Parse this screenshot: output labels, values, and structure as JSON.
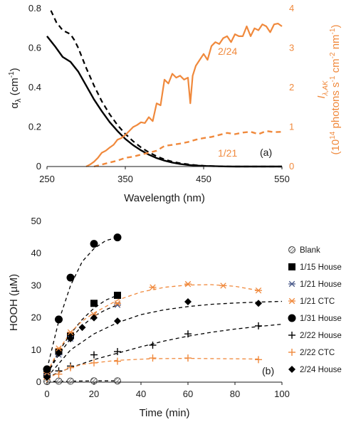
{
  "colors": {
    "black": "#000000",
    "orange": "#f0893c",
    "axis": "#1a1a1a",
    "grid": "#000000"
  },
  "chart_data": [
    {
      "panel_label": "(a)",
      "type": "line",
      "xlabel": "Wavelength (nm)",
      "ylabel": "αλ (cm-1)",
      "ylabel_main": "α",
      "ylabel_sub": "λ",
      "ylabel_units": " (cm",
      "ylabel_units_sup": "-1",
      "ylabel_units_end": ")",
      "ylabel_right_main": "I",
      "ylabel_right_sub": "λ,AK",
      "ylabel_right_units": "(10",
      "ylabel_right_sup1": "14",
      "ylabel_right_mid1": " photons s",
      "ylabel_right_sup2": "-1",
      "ylabel_right_mid2": " cm",
      "ylabel_right_sup3": "-2",
      "ylabel_right_mid3": " nm",
      "ylabel_right_sup4": "-1",
      "ylabel_right_end": ")",
      "xlim": [
        250,
        550
      ],
      "ylim": [
        0,
        0.8
      ],
      "ylim_right": [
        0,
        4
      ],
      "xticks": [
        "250",
        "350",
        "450",
        "550"
      ],
      "yticks": [
        "0",
        "0.2",
        "0.4",
        "0.6",
        "0.8"
      ],
      "yticks_right": [
        "0",
        "1",
        "2",
        "3",
        "4"
      ],
      "annotations": [
        "2/24",
        "1/21"
      ],
      "series": [
        {
          "style": "solid-black",
          "axis": "left",
          "x": [
            250,
            260,
            270,
            280,
            290,
            300,
            310,
            320,
            330,
            340,
            350,
            360,
            370,
            380,
            390,
            400,
            410,
            420,
            430,
            440,
            450,
            460,
            470,
            480,
            490,
            500,
            550
          ],
          "y": [
            0.66,
            0.61,
            0.555,
            0.53,
            0.48,
            0.41,
            0.34,
            0.28,
            0.225,
            0.18,
            0.14,
            0.108,
            0.082,
            0.06,
            0.043,
            0.03,
            0.02,
            0.013,
            0.008,
            0.005,
            0.003,
            0.002,
            0.001,
            0.0005,
            0.0,
            0.0,
            0.0
          ]
        },
        {
          "style": "dashed-black",
          "axis": "left",
          "x": [
            255,
            262,
            270,
            280,
            285,
            290,
            300,
            310,
            320,
            330,
            340,
            350,
            360,
            370,
            380,
            390,
            400,
            410,
            420,
            430,
            440,
            450,
            460,
            470,
            480,
            490,
            500,
            550
          ],
          "y": [
            0.79,
            0.73,
            0.69,
            0.67,
            0.64,
            0.6,
            0.5,
            0.41,
            0.33,
            0.265,
            0.21,
            0.165,
            0.128,
            0.097,
            0.072,
            0.052,
            0.036,
            0.025,
            0.017,
            0.011,
            0.007,
            0.004,
            0.002,
            0.001,
            0.0005,
            0.0,
            0.0,
            0.0
          ]
        },
        {
          "label": "2/24",
          "style": "solid-orange",
          "axis": "right",
          "x": [
            300,
            305,
            310,
            315,
            320,
            325,
            330,
            335,
            340,
            345,
            350,
            355,
            360,
            365,
            370,
            375,
            380,
            385,
            390,
            395,
            400,
            405,
            410,
            415,
            420,
            425,
            430,
            433,
            436,
            440,
            445,
            450,
            455,
            460,
            465,
            470,
            475,
            480,
            485,
            490,
            495,
            500,
            505,
            510,
            515,
            520,
            525,
            530,
            535,
            540,
            545,
            550
          ],
          "y": [
            0.0,
            0.05,
            0.12,
            0.22,
            0.35,
            0.4,
            0.48,
            0.55,
            0.68,
            0.72,
            0.8,
            0.9,
            1.0,
            1.05,
            1.12,
            1.1,
            1.25,
            1.15,
            1.6,
            1.55,
            2.2,
            2.1,
            2.35,
            2.25,
            2.3,
            2.2,
            2.25,
            1.6,
            2.3,
            2.55,
            2.7,
            2.85,
            2.7,
            3.05,
            3.15,
            3.1,
            3.25,
            3.3,
            3.15,
            3.35,
            3.3,
            3.3,
            3.55,
            3.3,
            3.5,
            3.45,
            3.6,
            3.55,
            3.4,
            3.6,
            3.62,
            3.55
          ]
        },
        {
          "label": "1/21",
          "style": "dashed-orange",
          "axis": "right",
          "x": [
            310,
            320,
            330,
            340,
            350,
            360,
            370,
            380,
            390,
            400,
            410,
            420,
            430,
            440,
            450,
            460,
            470,
            480,
            490,
            500,
            510,
            520,
            530,
            540,
            550
          ],
          "y": [
            0.0,
            0.05,
            0.1,
            0.15,
            0.22,
            0.25,
            0.3,
            0.35,
            0.4,
            0.52,
            0.55,
            0.58,
            0.62,
            0.68,
            0.72,
            0.75,
            0.8,
            0.85,
            0.82,
            0.86,
            0.88,
            0.82,
            0.9,
            0.87,
            0.88
          ]
        }
      ]
    },
    {
      "panel_label": "(b)",
      "type": "scatter",
      "xlabel": "Time (min)",
      "ylabel": "HOOH (µM)",
      "xlim": [
        0,
        100
      ],
      "ylim": [
        0,
        50
      ],
      "xticks": [
        "0",
        "20",
        "40",
        "60",
        "80",
        "100"
      ],
      "yticks": [
        "0",
        "10",
        "20",
        "30",
        "40",
        "50"
      ],
      "series": [
        {
          "name": "Blank",
          "marker": "hatched-circle",
          "color": "#808080",
          "x": [
            0,
            5,
            10,
            20,
            30
          ],
          "y": [
            0.2,
            0.3,
            0.3,
            0.4,
            0.4
          ],
          "fit_x": [
            0,
            5,
            10,
            20,
            30
          ],
          "fit_y": [
            0.2,
            0.3,
            0.3,
            0.4,
            0.4
          ]
        },
        {
          "name": "1/15 House",
          "marker": "square",
          "color": "#000000",
          "x": [
            0,
            5,
            10,
            20,
            30
          ],
          "y": [
            2.5,
            9.5,
            14.5,
            24.5,
            27.0
          ],
          "fit_x": [
            0,
            5,
            10,
            15,
            20,
            25,
            30
          ],
          "fit_y": [
            2.5,
            9.5,
            15.0,
            19.5,
            23.0,
            25.5,
            27.0
          ]
        },
        {
          "name": "1/21 House",
          "marker": "asterisk",
          "color": "#4a5a8a",
          "x": [
            0,
            5,
            10,
            20,
            30
          ],
          "y": [
            2.5,
            8.5,
            13.5,
            21.0,
            24.0
          ],
          "fit_x": [
            0,
            5,
            10,
            15,
            20,
            25,
            30
          ],
          "fit_y": [
            2.5,
            8.5,
            13.5,
            17.5,
            20.5,
            22.5,
            24.0
          ]
        },
        {
          "name": "1/21 CTC",
          "marker": "asterisk",
          "color": "#f0893c",
          "x": [
            0,
            5,
            10,
            20,
            30,
            45,
            60,
            75,
            90
          ],
          "y": [
            3.0,
            10.5,
            15.5,
            21.0,
            24.5,
            29.5,
            30.5,
            30.0,
            28.5
          ],
          "fit_x": [
            0,
            5,
            10,
            15,
            20,
            25,
            30,
            40,
            50,
            60,
            70,
            80,
            90
          ],
          "fit_y": [
            3.0,
            10.0,
            15.5,
            19.0,
            21.5,
            23.5,
            25.5,
            28.0,
            29.5,
            30.2,
            30.3,
            29.8,
            28.5
          ]
        },
        {
          "name": "1/31 House",
          "marker": "circle",
          "color": "#000000",
          "x": [
            0,
            5,
            10,
            20,
            30
          ],
          "y": [
            4.0,
            19.5,
            32.5,
            43.0,
            45.0
          ],
          "fit_x": [
            0,
            5,
            10,
            15,
            20,
            25,
            30
          ],
          "fit_y": [
            4.0,
            19.0,
            30.0,
            37.5,
            41.5,
            44.0,
            45.0
          ]
        },
        {
          "name": "2/22 House",
          "marker": "plus",
          "color": "#000000",
          "x": [
            0,
            5,
            10,
            20,
            30,
            45,
            60,
            90
          ],
          "y": [
            1.5,
            3.5,
            5.0,
            8.5,
            9.5,
            11.5,
            15.0,
            17.5
          ],
          "fit_x": [
            0,
            10,
            20,
            30,
            40,
            50,
            60,
            70,
            80,
            90,
            100
          ],
          "fit_y": [
            1.5,
            4.5,
            7.0,
            9.0,
            11.0,
            12.8,
            14.3,
            15.5,
            16.5,
            17.3,
            18.0
          ]
        },
        {
          "name": "2/22 CTC",
          "marker": "plus",
          "color": "#f0893c",
          "x": [
            0,
            5,
            10,
            20,
            30,
            45,
            60,
            90
          ],
          "y": [
            1.0,
            2.5,
            4.5,
            6.0,
            6.5,
            7.5,
            7.5,
            7.0
          ],
          "fit_x": [
            0,
            5,
            10,
            15,
            20,
            30,
            45,
            60,
            90
          ],
          "fit_y": [
            1.0,
            3.0,
            4.5,
            5.5,
            6.0,
            6.8,
            7.3,
            7.4,
            7.2
          ]
        },
        {
          "name": "2/24 House",
          "marker": "diamond",
          "color": "#000000",
          "x": [
            0,
            5,
            10,
            15,
            20,
            30,
            60,
            90
          ],
          "y": [
            1.5,
            9.0,
            13.5,
            17.0,
            20.0,
            19.0,
            25.0,
            24.5
          ],
          "fit_x": [
            0,
            10,
            20,
            30,
            40,
            50,
            60,
            70,
            80,
            90,
            100
          ],
          "fit_y": [
            1.5,
            10.0,
            15.0,
            18.5,
            21.0,
            22.5,
            23.5,
            24.2,
            24.6,
            24.9,
            25.1
          ]
        }
      ]
    }
  ]
}
